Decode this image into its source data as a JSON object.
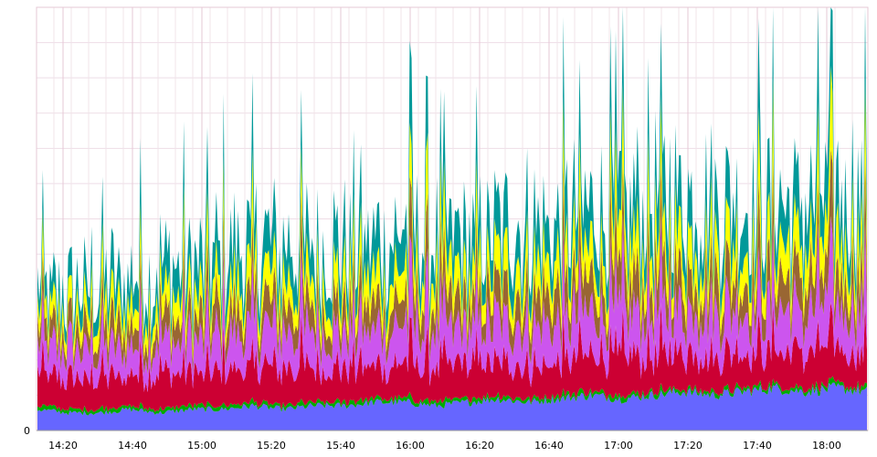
{
  "chart_data": {
    "type": "area",
    "stacked": true,
    "grid": true,
    "legend": "none",
    "x_tick_labels": [
      "14:20",
      "14:40",
      "15:00",
      "15:20",
      "15:40",
      "16:00",
      "16:20",
      "16:40",
      "17:00",
      "17:20",
      "17:40",
      "18:00"
    ],
    "y_tick_labels": [
      "0"
    ],
    "x_range": [
      "14:12",
      "18:12"
    ],
    "series": [
      {
        "color": "#6666ff",
        "values": [
          6,
          5,
          5,
          6,
          5,
          6,
          6,
          7,
          6,
          7,
          7,
          8,
          8,
          7,
          8,
          9,
          8,
          9,
          10,
          9,
          10,
          11,
          10,
          11,
          12,
          11,
          12,
          11
        ]
      },
      {
        "color": "#00aa00",
        "values": [
          1,
          1,
          1,
          1,
          1,
          1,
          1,
          1,
          1,
          1,
          1,
          1,
          1,
          1,
          1,
          1,
          1,
          1,
          1,
          1,
          1,
          1,
          1,
          1,
          1,
          1,
          1,
          1
        ]
      },
      {
        "color": "#cc0033",
        "values": [
          9,
          8,
          9,
          9,
          10,
          9,
          10,
          10,
          11,
          10,
          10,
          9,
          10,
          9,
          10,
          10,
          9,
          10,
          10,
          11,
          10,
          11,
          10,
          11,
          10,
          10,
          10,
          10
        ]
      },
      {
        "color": "#cc55ee",
        "values": [
          7,
          8,
          8,
          8,
          9,
          9,
          10,
          10,
          10,
          11,
          10,
          10,
          11,
          10,
          10,
          11,
          11,
          11,
          12,
          12,
          12,
          12,
          13,
          12,
          12,
          12,
          12,
          12
        ]
      },
      {
        "color": "#996633",
        "values": [
          5,
          5,
          6,
          6,
          6,
          6,
          7,
          7,
          7,
          7,
          7,
          7,
          8,
          8,
          7,
          8,
          8,
          9,
          9,
          9,
          9,
          10,
          10,
          9,
          9,
          9,
          9,
          10
        ]
      },
      {
        "color": "#ffff00",
        "values": [
          5,
          5,
          6,
          6,
          7,
          7,
          7,
          8,
          7,
          7,
          8,
          8,
          8,
          8,
          8,
          8,
          9,
          9,
          9,
          10,
          10,
          10,
          10,
          10,
          10,
          10,
          11,
          10
        ]
      },
      {
        "color": "#009999",
        "values": [
          6,
          6,
          7,
          8,
          8,
          9,
          10,
          10,
          10,
          9,
          10,
          10,
          11,
          10,
          10,
          11,
          11,
          11,
          12,
          12,
          13,
          12,
          12,
          12,
          12,
          12,
          13,
          12
        ]
      }
    ]
  }
}
